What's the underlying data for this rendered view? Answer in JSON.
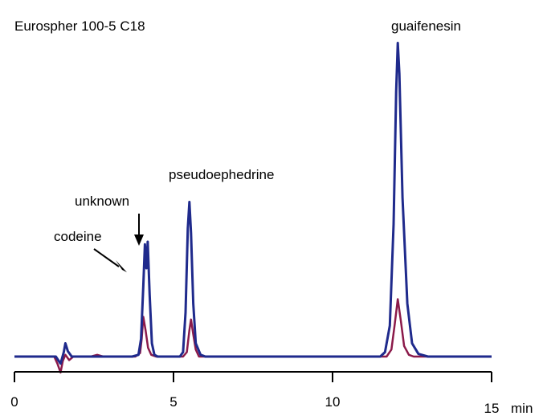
{
  "chart_data": {
    "type": "line",
    "title": "Eurospher 100-5 C18",
    "xlabel": "min",
    "ylabel": "",
    "xlim": [
      0,
      15
    ],
    "x_ticks": [
      0,
      5,
      10,
      15
    ],
    "x_tick_labels": [
      "0",
      "5",
      "10",
      "15"
    ],
    "grid": false,
    "series": [
      {
        "color": "#1f2a8c",
        "points": [
          [
            0.0,
            0.0
          ],
          [
            1.3,
            0.0
          ],
          [
            1.45,
            -0.08
          ],
          [
            1.55,
            0.05
          ],
          [
            1.6,
            0.15
          ],
          [
            1.68,
            0.06
          ],
          [
            1.8,
            0.0
          ],
          [
            3.7,
            0.0
          ],
          [
            3.9,
            0.02
          ],
          [
            3.98,
            0.2
          ],
          [
            4.05,
            0.8
          ],
          [
            4.1,
            1.27
          ],
          [
            4.15,
            1.0
          ],
          [
            4.19,
            1.3
          ],
          [
            4.25,
            0.7
          ],
          [
            4.32,
            0.15
          ],
          [
            4.4,
            0.02
          ],
          [
            4.5,
            0.0
          ],
          [
            5.2,
            0.0
          ],
          [
            5.3,
            0.05
          ],
          [
            5.38,
            0.5
          ],
          [
            5.45,
            1.45
          ],
          [
            5.5,
            1.75
          ],
          [
            5.55,
            1.4
          ],
          [
            5.62,
            0.6
          ],
          [
            5.7,
            0.15
          ],
          [
            5.85,
            0.02
          ],
          [
            6.0,
            0.0
          ],
          [
            11.5,
            0.0
          ],
          [
            11.65,
            0.05
          ],
          [
            11.8,
            0.35
          ],
          [
            11.92,
            1.5
          ],
          [
            12.0,
            3.0
          ],
          [
            12.05,
            3.55
          ],
          [
            12.1,
            3.2
          ],
          [
            12.2,
            1.8
          ],
          [
            12.35,
            0.6
          ],
          [
            12.5,
            0.15
          ],
          [
            12.7,
            0.03
          ],
          [
            13.0,
            0.0
          ],
          [
            15.0,
            0.0
          ]
        ]
      },
      {
        "color": "#8b1a4a",
        "points": [
          [
            0.0,
            0.0
          ],
          [
            1.25,
            0.0
          ],
          [
            1.35,
            -0.08
          ],
          [
            1.45,
            -0.18
          ],
          [
            1.52,
            -0.05
          ],
          [
            1.6,
            0.02
          ],
          [
            1.72,
            -0.04
          ],
          [
            1.85,
            0.0
          ],
          [
            2.4,
            0.0
          ],
          [
            2.6,
            0.02
          ],
          [
            2.8,
            0.0
          ],
          [
            3.8,
            0.0
          ],
          [
            3.95,
            0.04
          ],
          [
            4.0,
            0.2
          ],
          [
            4.05,
            0.45
          ],
          [
            4.12,
            0.3
          ],
          [
            4.2,
            0.1
          ],
          [
            4.3,
            0.02
          ],
          [
            4.45,
            0.0
          ],
          [
            5.3,
            0.0
          ],
          [
            5.42,
            0.05
          ],
          [
            5.5,
            0.3
          ],
          [
            5.55,
            0.42
          ],
          [
            5.62,
            0.25
          ],
          [
            5.7,
            0.08
          ],
          [
            5.8,
            0.0
          ],
          [
            11.7,
            0.0
          ],
          [
            11.85,
            0.08
          ],
          [
            11.95,
            0.35
          ],
          [
            12.05,
            0.65
          ],
          [
            12.15,
            0.4
          ],
          [
            12.25,
            0.12
          ],
          [
            12.4,
            0.02
          ],
          [
            12.55,
            0.0
          ],
          [
            15.0,
            0.0
          ]
        ]
      }
    ],
    "annotations": [
      {
        "text": "guaifenesin"
      },
      {
        "text": "pseudoephedrine"
      },
      {
        "text": "unknown"
      },
      {
        "text": "codeine"
      }
    ]
  }
}
